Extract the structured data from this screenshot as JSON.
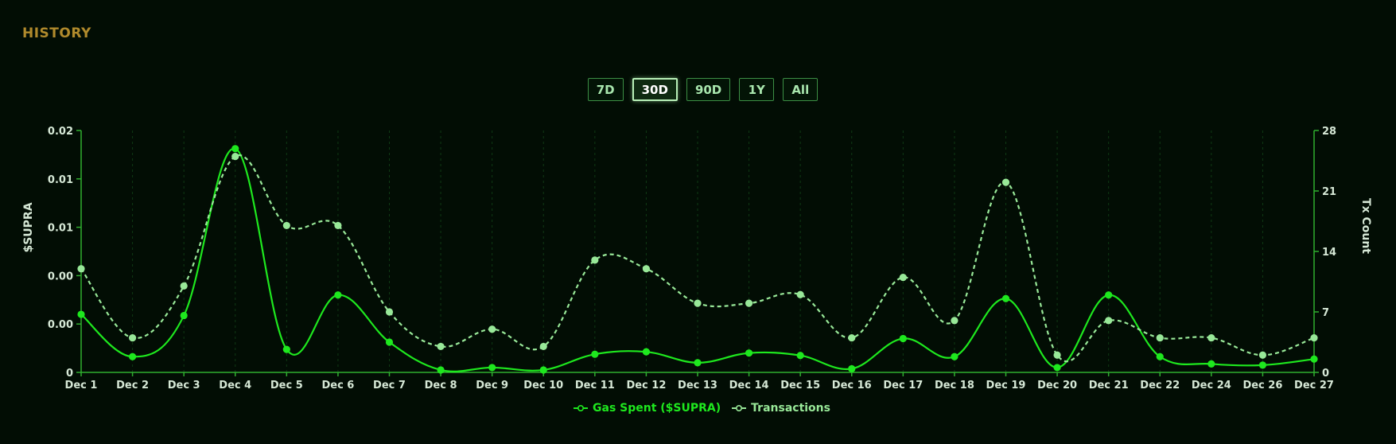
{
  "header": {
    "title": "HISTORY"
  },
  "range_buttons": [
    {
      "label": "7D",
      "active": false
    },
    {
      "label": "30D",
      "active": true
    },
    {
      "label": "90D",
      "active": false
    },
    {
      "label": "1Y",
      "active": false
    },
    {
      "label": "All",
      "active": false
    }
  ],
  "colors": {
    "background": "#020d04",
    "gas_line": "#1ee81e",
    "tx_line": "#98e898",
    "axis": "#2fae2f",
    "title": "#b08a2c"
  },
  "legend": {
    "gas_label": "Gas Spent ($SUPRA)",
    "tx_label": "Transactions"
  },
  "chart_data": {
    "type": "line",
    "xlabel": "",
    "ylabel": "$SUPRA",
    "y2label": "Tx Count",
    "categories": [
      "Dec 1",
      "Dec 2",
      "Dec 3",
      "Dec 4",
      "Dec 5",
      "Dec 6",
      "Dec 7",
      "Dec 8",
      "Dec 9",
      "Dec 10",
      "Dec 11",
      "Dec 12",
      "Dec 13",
      "Dec 14",
      "Dec 15",
      "Dec 16",
      "Dec 17",
      "Dec 18",
      "Dec 19",
      "Dec 20",
      "Dec 21",
      "Dec 22",
      "Dec 24",
      "Dec 26",
      "Dec 27"
    ],
    "y_ticks": [
      "0.02",
      "0.01",
      "0.01",
      "0.00",
      "0.00",
      "0"
    ],
    "y2_ticks": [
      "28",
      "21",
      "14",
      "7",
      "0"
    ],
    "ylim": [
      0,
      0.02
    ],
    "y2lim": [
      0,
      28
    ],
    "grid": true,
    "legend_position": "bottom-center",
    "series": [
      {
        "name": "Gas Spent ($SUPRA)",
        "axis": "left",
        "style": "solid",
        "values": [
          0.0048,
          0.0013,
          0.0047,
          0.0185,
          0.0019,
          0.0064,
          0.0025,
          0.0002,
          0.0004,
          0.0002,
          0.0015,
          0.0017,
          0.0008,
          0.0016,
          0.0014,
          0.0003,
          0.0028,
          0.0013,
          0.0061,
          0.0004,
          0.0064,
          0.0013,
          0.0007,
          0.0006,
          0.0011
        ]
      },
      {
        "name": "Transactions",
        "axis": "right",
        "style": "dashed",
        "values": [
          12,
          4,
          10,
          25,
          17,
          17,
          7,
          3,
          5,
          3,
          13,
          12,
          8,
          8,
          9,
          4,
          11,
          6,
          22,
          2,
          6,
          4,
          4,
          2,
          4
        ]
      }
    ]
  }
}
